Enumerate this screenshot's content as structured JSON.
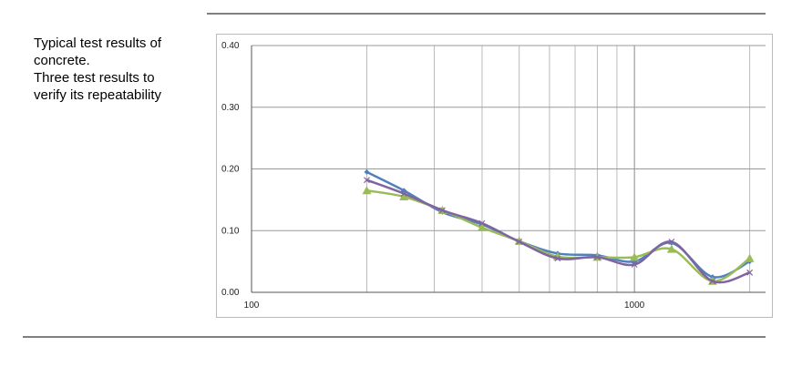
{
  "caption": [
    "Typical test results of",
    "concrete.",
    "Three test results to",
    "verify its repeatability"
  ],
  "chart_data": {
    "type": "line",
    "x": [
      200,
      250,
      315,
      400,
      500,
      630,
      800,
      1000,
      1250,
      1600,
      2000
    ],
    "series": [
      {
        "color": "#4f81bd",
        "marker": "diamond",
        "values": [
          0.195,
          0.165,
          0.13,
          0.11,
          0.083,
          0.063,
          0.06,
          0.05,
          0.08,
          0.025,
          0.05
        ]
      },
      {
        "color": "#9bbb59",
        "marker": "triangle",
        "values": [
          0.165,
          0.155,
          0.133,
          0.105,
          0.083,
          0.058,
          0.057,
          0.057,
          0.07,
          0.018,
          0.055
        ]
      },
      {
        "color": "#8064a2",
        "marker": "x",
        "values": [
          0.182,
          0.16,
          0.133,
          0.112,
          0.082,
          0.055,
          0.057,
          0.045,
          0.082,
          0.018,
          0.032
        ]
      }
    ],
    "xscale": "log",
    "xlim": [
      100,
      2200
    ],
    "xticks": [
      100,
      1000
    ],
    "xminor": [
      200,
      300,
      400,
      500,
      600,
      700,
      800,
      900,
      2000
    ],
    "ylim": [
      0,
      0.4
    ],
    "yticks": [
      {
        "value": 0,
        "label": "0.00"
      },
      {
        "value": 0.1,
        "label": "0.10"
      },
      {
        "value": 0.2,
        "label": "0.20"
      },
      {
        "value": 0.3,
        "label": "0.30"
      },
      {
        "value": 0.4,
        "label": "0.40"
      }
    ],
    "grid": true,
    "smooth": true
  }
}
